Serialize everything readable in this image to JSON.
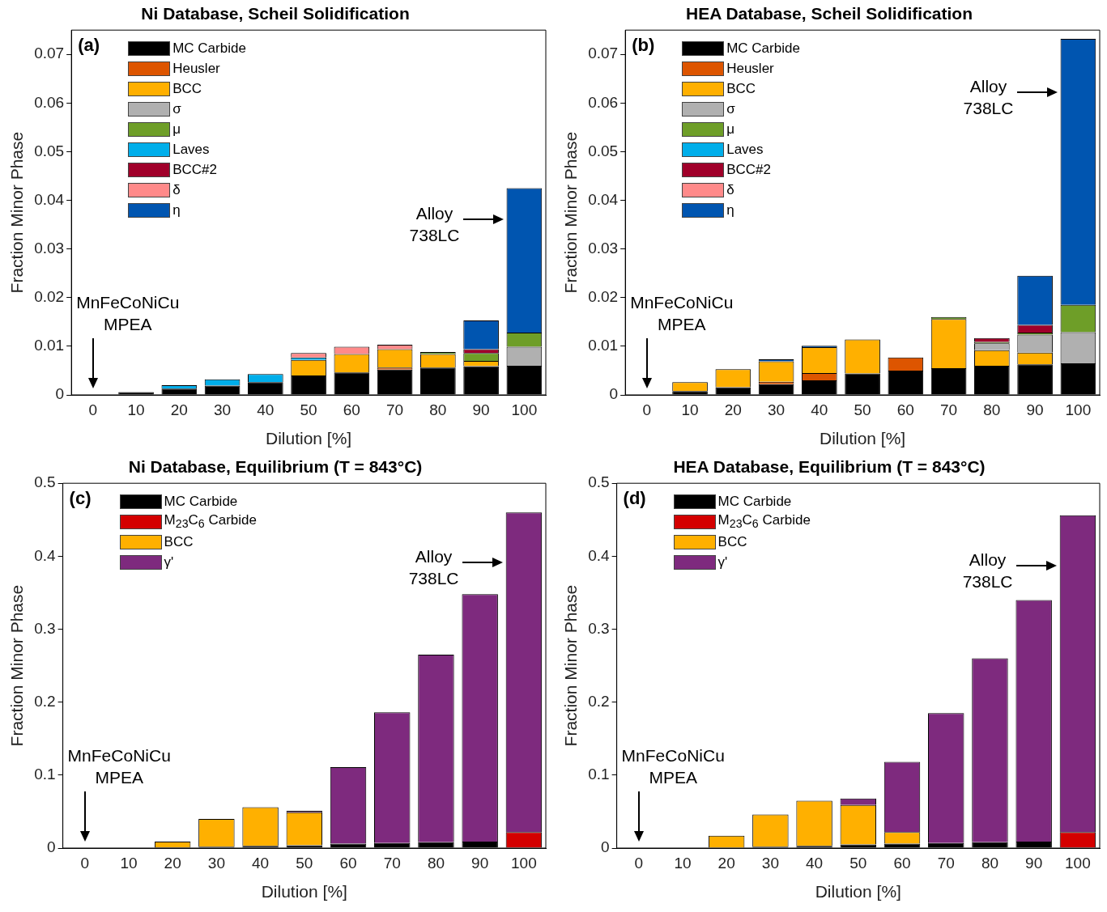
{
  "chart_data": [
    {
      "type": "bar",
      "title": "Ni Database, Scheil Solidification",
      "xlabel": "Dilution [%]",
      "ylabel": "Fraction Minor Phase",
      "stacked": true,
      "grid": false,
      "legend": "top left",
      "categories": [
        "0",
        "10",
        "20",
        "30",
        "40",
        "50",
        "60",
        "70",
        "80",
        "90",
        "100"
      ],
      "ylim": [
        0,
        0.075
      ],
      "yticks": [
        0,
        0.01,
        0.02,
        0.03,
        0.04,
        0.05,
        0.06,
        0.07
      ],
      "annotations": [
        "(a)",
        "MnFeCoNiCu MPEA",
        "Alloy 738LC"
      ],
      "series": [
        {
          "name": "MC Carbide",
          "color": "#000000",
          "values": [
            null,
            0.0006,
            0.0013,
            0.0019,
            0.0026,
            0.004,
            0.0046,
            0.0052,
            0.0056,
            0.0059,
            0.006
          ]
        },
        {
          "name": "Heusler",
          "color": "#dd5500",
          "values": [
            null,
            null,
            null,
            null,
            null,
            null,
            null,
            0.0004,
            null,
            null,
            null
          ]
        },
        {
          "name": "BCC",
          "color": "#ffb000",
          "values": [
            null,
            null,
            null,
            null,
            null,
            0.0032,
            0.0038,
            0.0038,
            0.0028,
            0.0011,
            null
          ]
        },
        {
          "name": "σ",
          "color": "#b0b0b0",
          "values": [
            null,
            null,
            null,
            null,
            null,
            null,
            null,
            null,
            null,
            null,
            0.0039
          ]
        },
        {
          "name": "μ",
          "color": "#6e9e28",
          "values": [
            null,
            null,
            null,
            null,
            null,
            null,
            null,
            null,
            0.0004,
            0.0016,
            0.0029
          ]
        },
        {
          "name": "Laves",
          "color": "#00aeea",
          "values": [
            null,
            null,
            0.0007,
            0.0013,
            0.0017,
            0.0005,
            null,
            null,
            null,
            null,
            null
          ]
        },
        {
          "name": "BCC#2",
          "color": "#a0002a",
          "values": [
            null,
            null,
            null,
            null,
            null,
            null,
            null,
            null,
            null,
            0.0008,
            null
          ]
        },
        {
          "name": "δ",
          "color": "#ff8a8a",
          "values": [
            null,
            null,
            null,
            null,
            null,
            0.0009,
            0.0015,
            0.0009,
            null,
            null,
            null
          ]
        },
        {
          "name": "η",
          "color": "#0055b0",
          "values": [
            null,
            null,
            null,
            null,
            null,
            null,
            null,
            null,
            null,
            0.0059,
            0.0297
          ]
        }
      ]
    },
    {
      "type": "bar",
      "title": "HEA Database, Scheil Solidification",
      "xlabel": "Dilution [%]",
      "ylabel": "Fraction Minor Phase",
      "stacked": true,
      "grid": false,
      "legend": "top left",
      "categories": [
        "0",
        "10",
        "20",
        "30",
        "40",
        "50",
        "60",
        "70",
        "80",
        "90",
        "100"
      ],
      "ylim": [
        0,
        0.075
      ],
      "yticks": [
        0,
        0.01,
        0.02,
        0.03,
        0.04,
        0.05,
        0.06,
        0.07
      ],
      "annotations": [
        "(b)",
        "MnFeCoNiCu MPEA",
        "Alloy 738LC"
      ],
      "series": [
        {
          "name": "MC Carbide",
          "color": "#000000",
          "values": [
            null,
            0.0008,
            0.0016,
            0.0022,
            0.003,
            0.0044,
            0.005,
            0.0055,
            0.006,
            0.0063,
            0.0065
          ]
        },
        {
          "name": "Heusler",
          "color": "#dd5500",
          "values": [
            null,
            null,
            null,
            0.0005,
            0.0015,
            null,
            0.0027,
            null,
            null,
            null,
            null
          ]
        },
        {
          "name": "BCC",
          "color": "#ffb000",
          "values": [
            null,
            0.0018,
            0.0037,
            0.0042,
            0.0053,
            0.007,
            null,
            0.0101,
            0.0032,
            0.0024,
            null
          ]
        },
        {
          "name": "σ",
          "color": "#b0b0b0",
          "values": [
            null,
            null,
            null,
            null,
            null,
            null,
            null,
            null,
            0.0014,
            0.0037,
            0.0064
          ]
        },
        {
          "name": "μ",
          "color": "#6e9e28",
          "values": [
            null,
            null,
            null,
            null,
            null,
            null,
            null,
            0.0004,
            0.0003,
            0.0004,
            0.0056
          ]
        },
        {
          "name": "Laves",
          "color": "#00aeea",
          "values": [
            null,
            null,
            null,
            null,
            null,
            null,
            null,
            null,
            null,
            null,
            null
          ]
        },
        {
          "name": "BCC#2",
          "color": "#a0002a",
          "values": [
            null,
            null,
            null,
            null,
            null,
            null,
            null,
            null,
            0.0008,
            0.0016,
            null
          ]
        },
        {
          "name": "δ",
          "color": "#ff8a8a",
          "values": [
            null,
            null,
            null,
            null,
            null,
            null,
            null,
            null,
            null,
            null,
            null
          ]
        },
        {
          "name": "η",
          "color": "#0055b0",
          "values": [
            null,
            null,
            null,
            0.0004,
            0.0003,
            null,
            null,
            null,
            null,
            0.0101,
            0.0547
          ]
        }
      ]
    },
    {
      "type": "bar",
      "title": "Ni Database, Equilibrium (T = 843°C)",
      "xlabel": "Dilution [%]",
      "ylabel": "Fraction Minor Phase",
      "stacked": true,
      "grid": false,
      "legend": "top left",
      "categories": [
        "0",
        "10",
        "20",
        "30",
        "40",
        "50",
        "60",
        "70",
        "80",
        "90",
        "100"
      ],
      "ylim": [
        0,
        0.5
      ],
      "yticks": [
        0,
        0.1,
        0.2,
        0.3,
        0.4,
        0.5
      ],
      "annotations": [
        "(c)",
        "MnFeCoNiCu MPEA",
        "Alloy 738LC"
      ],
      "series": [
        {
          "name": "MC Carbide",
          "color": "#000000",
          "values": [
            null,
            null,
            0.001,
            0.002,
            0.003,
            0.004,
            0.006,
            0.007,
            0.008,
            0.009,
            null
          ]
        },
        {
          "name": "M$_{23}$C$_{6}$ Carbide",
          "color": "#d40000",
          "values": [
            null,
            null,
            null,
            null,
            null,
            null,
            null,
            null,
            null,
            null,
            0.022
          ]
        },
        {
          "name": "BCC",
          "color": "#ffb000",
          "values": [
            null,
            null,
            0.008,
            0.038,
            0.053,
            0.045,
            null,
            null,
            null,
            null,
            null
          ]
        },
        {
          "name": "γ'",
          "color": "#7e2a7e",
          "values": [
            null,
            null,
            null,
            null,
            null,
            0.002,
            0.105,
            0.179,
            0.257,
            0.339,
            0.438
          ]
        }
      ]
    },
    {
      "type": "bar",
      "title": "HEA Database, Equilibrium (T = 843°C)",
      "xlabel": "Dilution [%]",
      "ylabel": "Fraction Minor Phase",
      "stacked": true,
      "grid": false,
      "legend": "top left",
      "categories": [
        "0",
        "10",
        "20",
        "30",
        "40",
        "50",
        "60",
        "70",
        "80",
        "90",
        "100"
      ],
      "ylim": [
        0,
        0.5
      ],
      "yticks": [
        0,
        0.1,
        0.2,
        0.3,
        0.4,
        0.5
      ],
      "annotations": [
        "(d)",
        "MnFeCoNiCu MPEA",
        "Alloy 738LC"
      ],
      "series": [
        {
          "name": "MC Carbide",
          "color": "#000000",
          "values": [
            null,
            null,
            null,
            0.002,
            0.003,
            0.005,
            0.006,
            0.007,
            0.008,
            0.009,
            null
          ]
        },
        {
          "name": "M$_{23}$C$_{6}$ Carbide",
          "color": "#d40000",
          "values": [
            null,
            null,
            null,
            null,
            null,
            null,
            null,
            null,
            null,
            null,
            0.022
          ]
        },
        {
          "name": "BCC",
          "color": "#ffb000",
          "values": [
            null,
            null,
            0.017,
            0.044,
            0.062,
            0.054,
            0.016,
            null,
            null,
            null,
            null
          ]
        },
        {
          "name": "γ'",
          "color": "#7e2a7e",
          "values": [
            null,
            null,
            null,
            null,
            null,
            0.009,
            0.096,
            0.178,
            0.252,
            0.331,
            0.434
          ]
        }
      ]
    }
  ]
}
